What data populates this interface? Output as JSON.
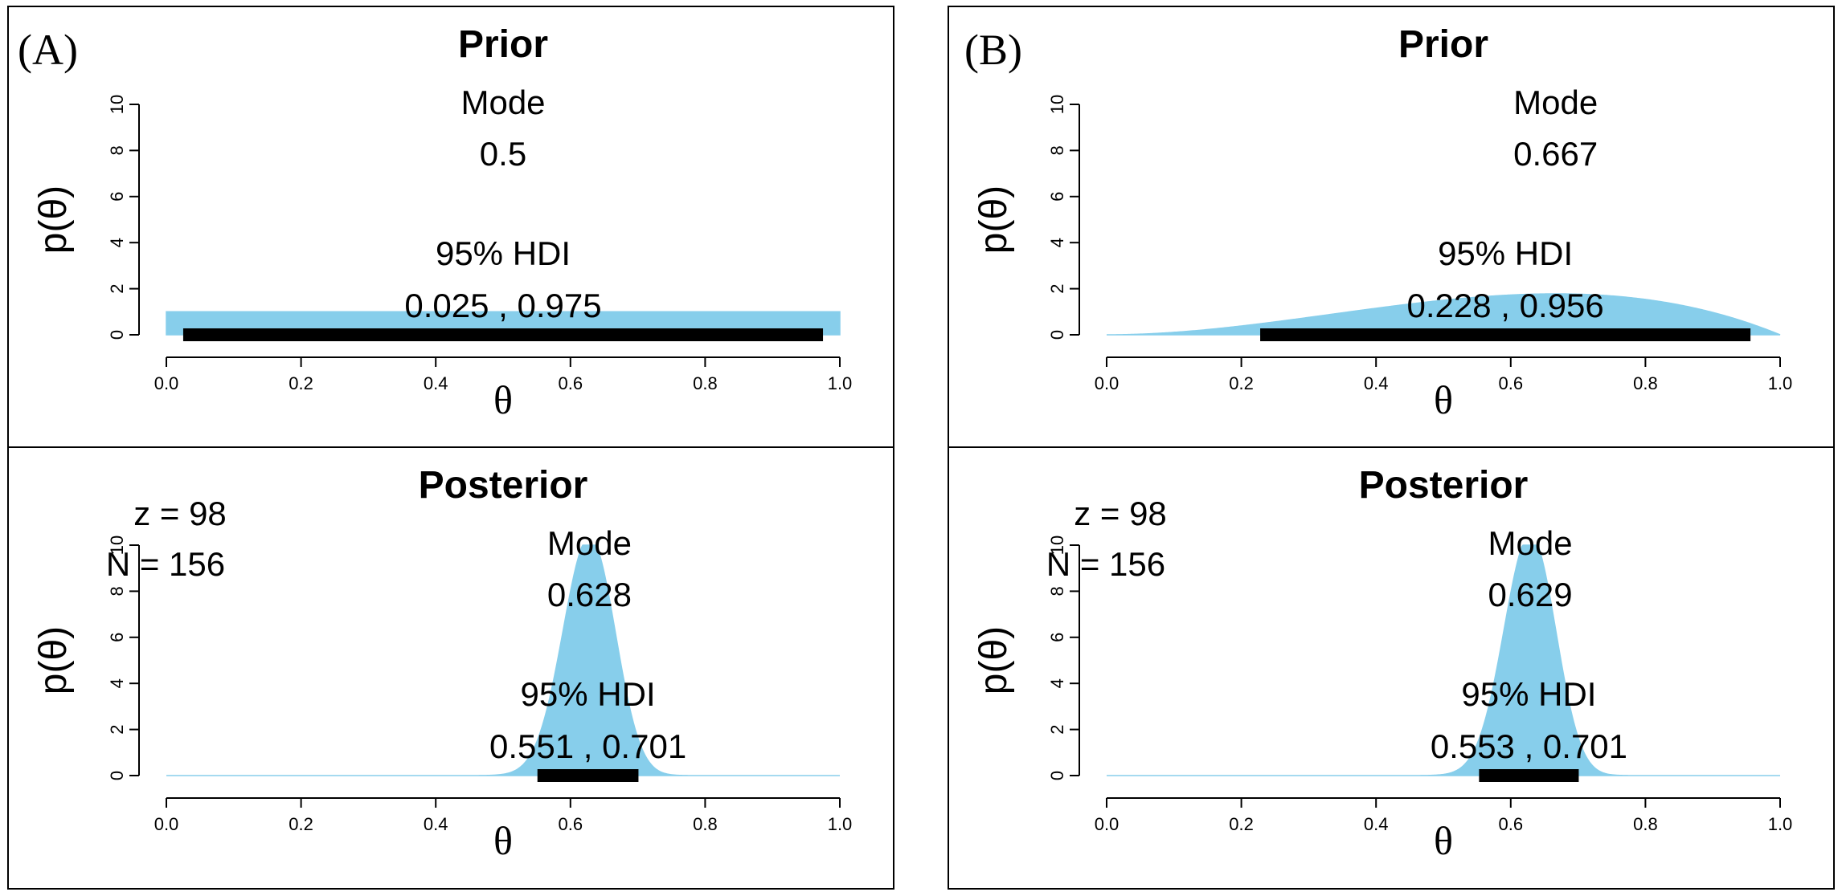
{
  "panel_labels": [
    "(A)",
    "(B)"
  ],
  "colors": {
    "density": "#87ceeb",
    "hdi": "#000000",
    "frame": "#000000"
  },
  "chart_data": [
    {
      "type": "area",
      "panel": "(A)",
      "title": "Prior",
      "xlabel": "θ",
      "ylabel": "p(θ)",
      "xlim": [
        0,
        1
      ],
      "ylim": [
        0,
        10
      ],
      "x_ticks": [
        "0.0",
        "0.2",
        "0.4",
        "0.6",
        "0.8",
        "1.0"
      ],
      "y_ticks": [
        "0",
        "2",
        "4",
        "6",
        "8",
        "10"
      ],
      "distribution": {
        "family": "beta",
        "a": 1,
        "b": 1
      },
      "mode_label": "Mode",
      "mode_value": "0.5",
      "hdi_label": "95% HDI",
      "hdi_text": "0.025 , 0.975",
      "hdi": [
        0.025,
        0.975
      ],
      "data_text": []
    },
    {
      "type": "area",
      "panel": "(B)",
      "title": "Prior",
      "xlabel": "θ",
      "ylabel": "p(θ)",
      "xlim": [
        0,
        1
      ],
      "ylim": [
        0,
        10
      ],
      "x_ticks": [
        "0.0",
        "0.2",
        "0.4",
        "0.6",
        "0.8",
        "1.0"
      ],
      "y_ticks": [
        "0",
        "2",
        "4",
        "6",
        "8",
        "10"
      ],
      "distribution": {
        "family": "beta",
        "a": 3,
        "b": 2
      },
      "mode_label": "Mode",
      "mode_value": "0.667",
      "hdi_label": "95% HDI",
      "hdi_text": "0.228 , 0.956",
      "hdi": [
        0.228,
        0.956
      ],
      "data_text": []
    },
    {
      "type": "area",
      "panel": "(A)",
      "title": "Posterior",
      "xlabel": "θ",
      "ylabel": "p(θ)",
      "xlim": [
        0,
        1
      ],
      "ylim": [
        0,
        10
      ],
      "x_ticks": [
        "0.0",
        "0.2",
        "0.4",
        "0.6",
        "0.8",
        "1.0"
      ],
      "y_ticks": [
        "0",
        "2",
        "4",
        "6",
        "8",
        "10"
      ],
      "distribution": {
        "family": "beta",
        "a": 99,
        "b": 59
      },
      "mode_label": "Mode",
      "mode_value": "0.628",
      "hdi_label": "95% HDI",
      "hdi_text": "0.551 , 0.701",
      "hdi": [
        0.551,
        0.701
      ],
      "data_text": [
        "z = 98",
        "N = 156"
      ]
    },
    {
      "type": "area",
      "panel": "(B)",
      "title": "Posterior",
      "xlabel": "θ",
      "ylabel": "p(θ)",
      "xlim": [
        0,
        1
      ],
      "ylim": [
        0,
        10
      ],
      "x_ticks": [
        "0.0",
        "0.2",
        "0.4",
        "0.6",
        "0.8",
        "1.0"
      ],
      "y_ticks": [
        "0",
        "2",
        "4",
        "6",
        "8",
        "10"
      ],
      "distribution": {
        "family": "beta",
        "a": 101,
        "b": 60
      },
      "mode_label": "Mode",
      "mode_value": "0.629",
      "hdi_label": "95% HDI",
      "hdi_text": "0.553 , 0.701",
      "hdi": [
        0.553,
        0.701
      ],
      "data_text": [
        "z = 98",
        "N = 156"
      ]
    }
  ]
}
